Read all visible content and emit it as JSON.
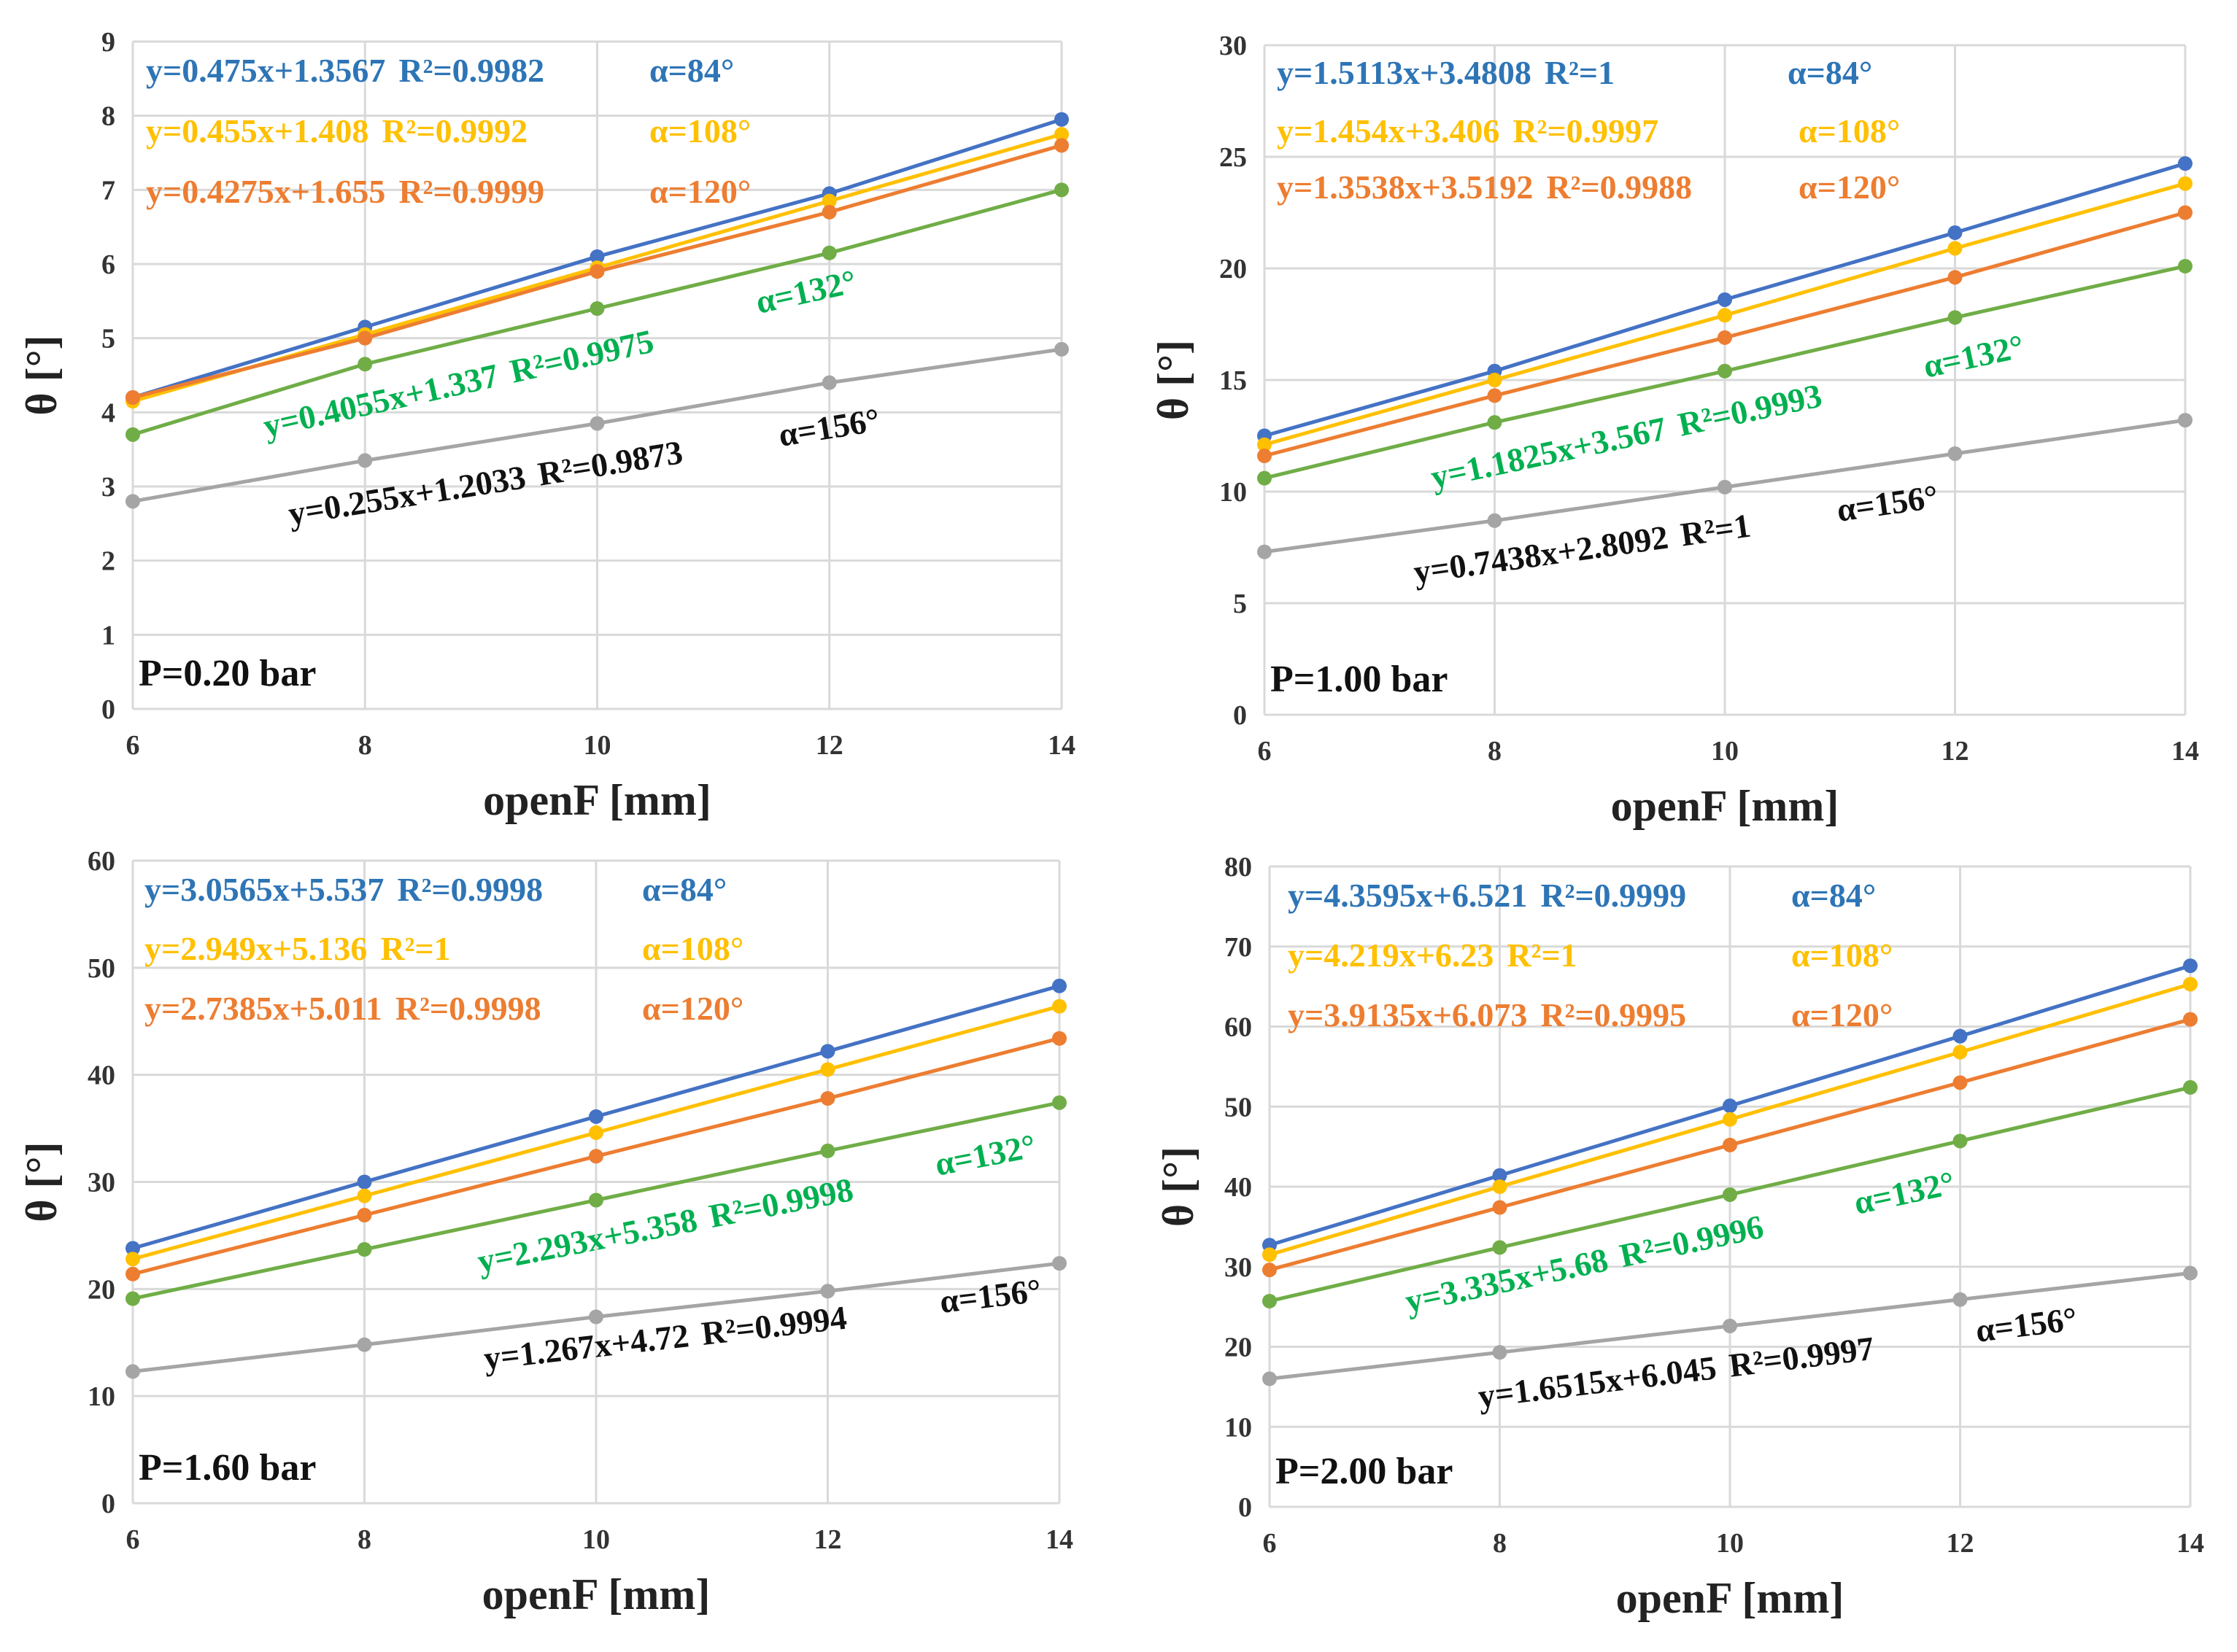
{
  "colors": {
    "blue": "#4472C4",
    "yellow": "#FFC000",
    "orange": "#ED7D31",
    "green": "#70AD47",
    "gray": "#A5A5A5",
    "blue_text": "#2E75B6",
    "yellow_text": "#FFC000",
    "orange_text": "#ED7D31",
    "green_text": "#00B050",
    "black_text": "#111111"
  },
  "chart_data": [
    {
      "type": "line",
      "panel_label": "P=0.20 bar",
      "xlabel": "openF [mm]",
      "ylabel": "θ [°]",
      "x": [
        6,
        8,
        10,
        12,
        14
      ],
      "ylim": [
        0,
        9
      ],
      "yticks": [
        0,
        1,
        2,
        3,
        4,
        5,
        6,
        7,
        8,
        9
      ],
      "grid": true,
      "series": [
        {
          "name": "α=84°",
          "color": "blue",
          "equation": "y=0.475x+1.3567",
          "r2": "R²=0.9982",
          "values": [
            4.2,
            5.15,
            6.1,
            6.95,
            7.95
          ]
        },
        {
          "name": "α=108°",
          "color": "yellow",
          "equation": "y=0.455x+1.408",
          "r2": "R²=0.9992",
          "values": [
            4.15,
            5.05,
            5.95,
            6.85,
            7.75
          ]
        },
        {
          "name": "α=120°",
          "color": "orange",
          "equation": "y=0.4275x+1.655",
          "r2": "R²=0.9999",
          "values": [
            4.2,
            5.0,
            5.9,
            6.7,
            7.6
          ]
        },
        {
          "name": "α=132°",
          "color": "green",
          "equation": "y=0.4055x+1.337",
          "r2": "R²=0.9975",
          "values": [
            3.7,
            4.65,
            5.4,
            6.15,
            7.0
          ]
        },
        {
          "name": "α=156°",
          "color": "gray",
          "equation": "y=0.255x+1.2033",
          "r2": "R²=0.9873",
          "values": [
            2.8,
            3.35,
            3.85,
            4.4,
            4.85
          ]
        }
      ]
    },
    {
      "type": "line",
      "panel_label": "P=1.00 bar",
      "xlabel": "openF [mm]",
      "ylabel": "θ [°]",
      "x": [
        6,
        8,
        10,
        12,
        14
      ],
      "ylim": [
        0,
        30
      ],
      "yticks": [
        0,
        5,
        10,
        15,
        20,
        25,
        30
      ],
      "grid": true,
      "series": [
        {
          "name": "α=84°",
          "color": "blue",
          "equation": "y=1.5113x+3.4808",
          "r2": "R²=1",
          "values": [
            12.5,
            15.4,
            18.6,
            21.6,
            24.7
          ]
        },
        {
          "name": "α=108°",
          "color": "yellow",
          "equation": "y=1.454x+3.406",
          "r2": "R²=0.9997",
          "values": [
            12.1,
            15.0,
            17.9,
            20.9,
            23.8
          ]
        },
        {
          "name": "α=120°",
          "color": "orange",
          "equation": "y=1.3538x+3.5192",
          "r2": "R²=0.9988",
          "values": [
            11.6,
            14.3,
            16.9,
            19.6,
            22.5
          ]
        },
        {
          "name": "α=132°",
          "color": "green",
          "equation": "y=1.1825x+3.567",
          "r2": "R²=0.9993",
          "values": [
            10.6,
            13.1,
            15.4,
            17.8,
            20.1
          ]
        },
        {
          "name": "α=156°",
          "color": "gray",
          "equation": "y=0.7438x+2.8092",
          "r2": "R²=1",
          "values": [
            7.3,
            8.7,
            10.2,
            11.7,
            13.2
          ]
        }
      ]
    },
    {
      "type": "line",
      "panel_label": "P=1.60 bar",
      "xlabel": "openF [mm]",
      "ylabel": "θ [°]",
      "x": [
        6,
        8,
        10,
        12,
        14
      ],
      "ylim": [
        0,
        60
      ],
      "yticks": [
        0,
        10,
        20,
        30,
        40,
        50,
        60
      ],
      "grid": true,
      "series": [
        {
          "name": "α=84°",
          "color": "blue",
          "equation": "y=3.0565x+5.537",
          "r2": "R²=0.9998",
          "values": [
            23.8,
            30.0,
            36.1,
            42.2,
            48.3
          ]
        },
        {
          "name": "α=108°",
          "color": "yellow",
          "equation": "y=2.949x+5.136",
          "r2": "R²=1",
          "values": [
            22.8,
            28.7,
            34.6,
            40.5,
            46.4
          ]
        },
        {
          "name": "α=120°",
          "color": "orange",
          "equation": "y=2.7385x+5.011",
          "r2": "R²=0.9998",
          "values": [
            21.4,
            26.9,
            32.4,
            37.8,
            43.4
          ]
        },
        {
          "name": "α=132°",
          "color": "green",
          "equation": "y=2.293x+5.358",
          "r2": "R²=0.9998",
          "values": [
            19.1,
            23.7,
            28.3,
            32.9,
            37.4
          ]
        },
        {
          "name": "α=156°",
          "color": "gray",
          "equation": "y=1.267x+4.72",
          "r2": "R²=0.9994",
          "values": [
            12.3,
            14.8,
            17.4,
            19.8,
            22.4
          ]
        }
      ]
    },
    {
      "type": "line",
      "panel_label": "P=2.00 bar",
      "xlabel": "openF [mm]",
      "ylabel": "θ [°]",
      "x": [
        6,
        8,
        10,
        12,
        14
      ],
      "ylim": [
        0,
        80
      ],
      "yticks": [
        0,
        10,
        20,
        30,
        40,
        50,
        60,
        70,
        80
      ],
      "grid": true,
      "series": [
        {
          "name": "α=84°",
          "color": "blue",
          "equation": "y=4.3595x+6.521",
          "r2": "R²=0.9999",
          "values": [
            32.7,
            41.4,
            50.1,
            58.8,
            67.6
          ]
        },
        {
          "name": "α=108°",
          "color": "yellow",
          "equation": "y=4.219x+6.23",
          "r2": "R²=1",
          "values": [
            31.5,
            40.0,
            48.4,
            56.8,
            65.3
          ]
        },
        {
          "name": "α=120°",
          "color": "orange",
          "equation": "y=3.9135x+6.073",
          "r2": "R²=0.9995",
          "values": [
            29.6,
            37.4,
            45.2,
            53.0,
            60.9
          ]
        },
        {
          "name": "α=132°",
          "color": "green",
          "equation": "y=3.335x+5.68",
          "r2": "R²=0.9996",
          "values": [
            25.7,
            32.4,
            39.0,
            45.7,
            52.4
          ]
        },
        {
          "name": "α=156°",
          "color": "gray",
          "equation": "y=1.6515x+6.045",
          "r2": "R²=0.9997",
          "values": [
            16.0,
            19.3,
            22.6,
            25.9,
            29.2
          ]
        }
      ]
    }
  ]
}
